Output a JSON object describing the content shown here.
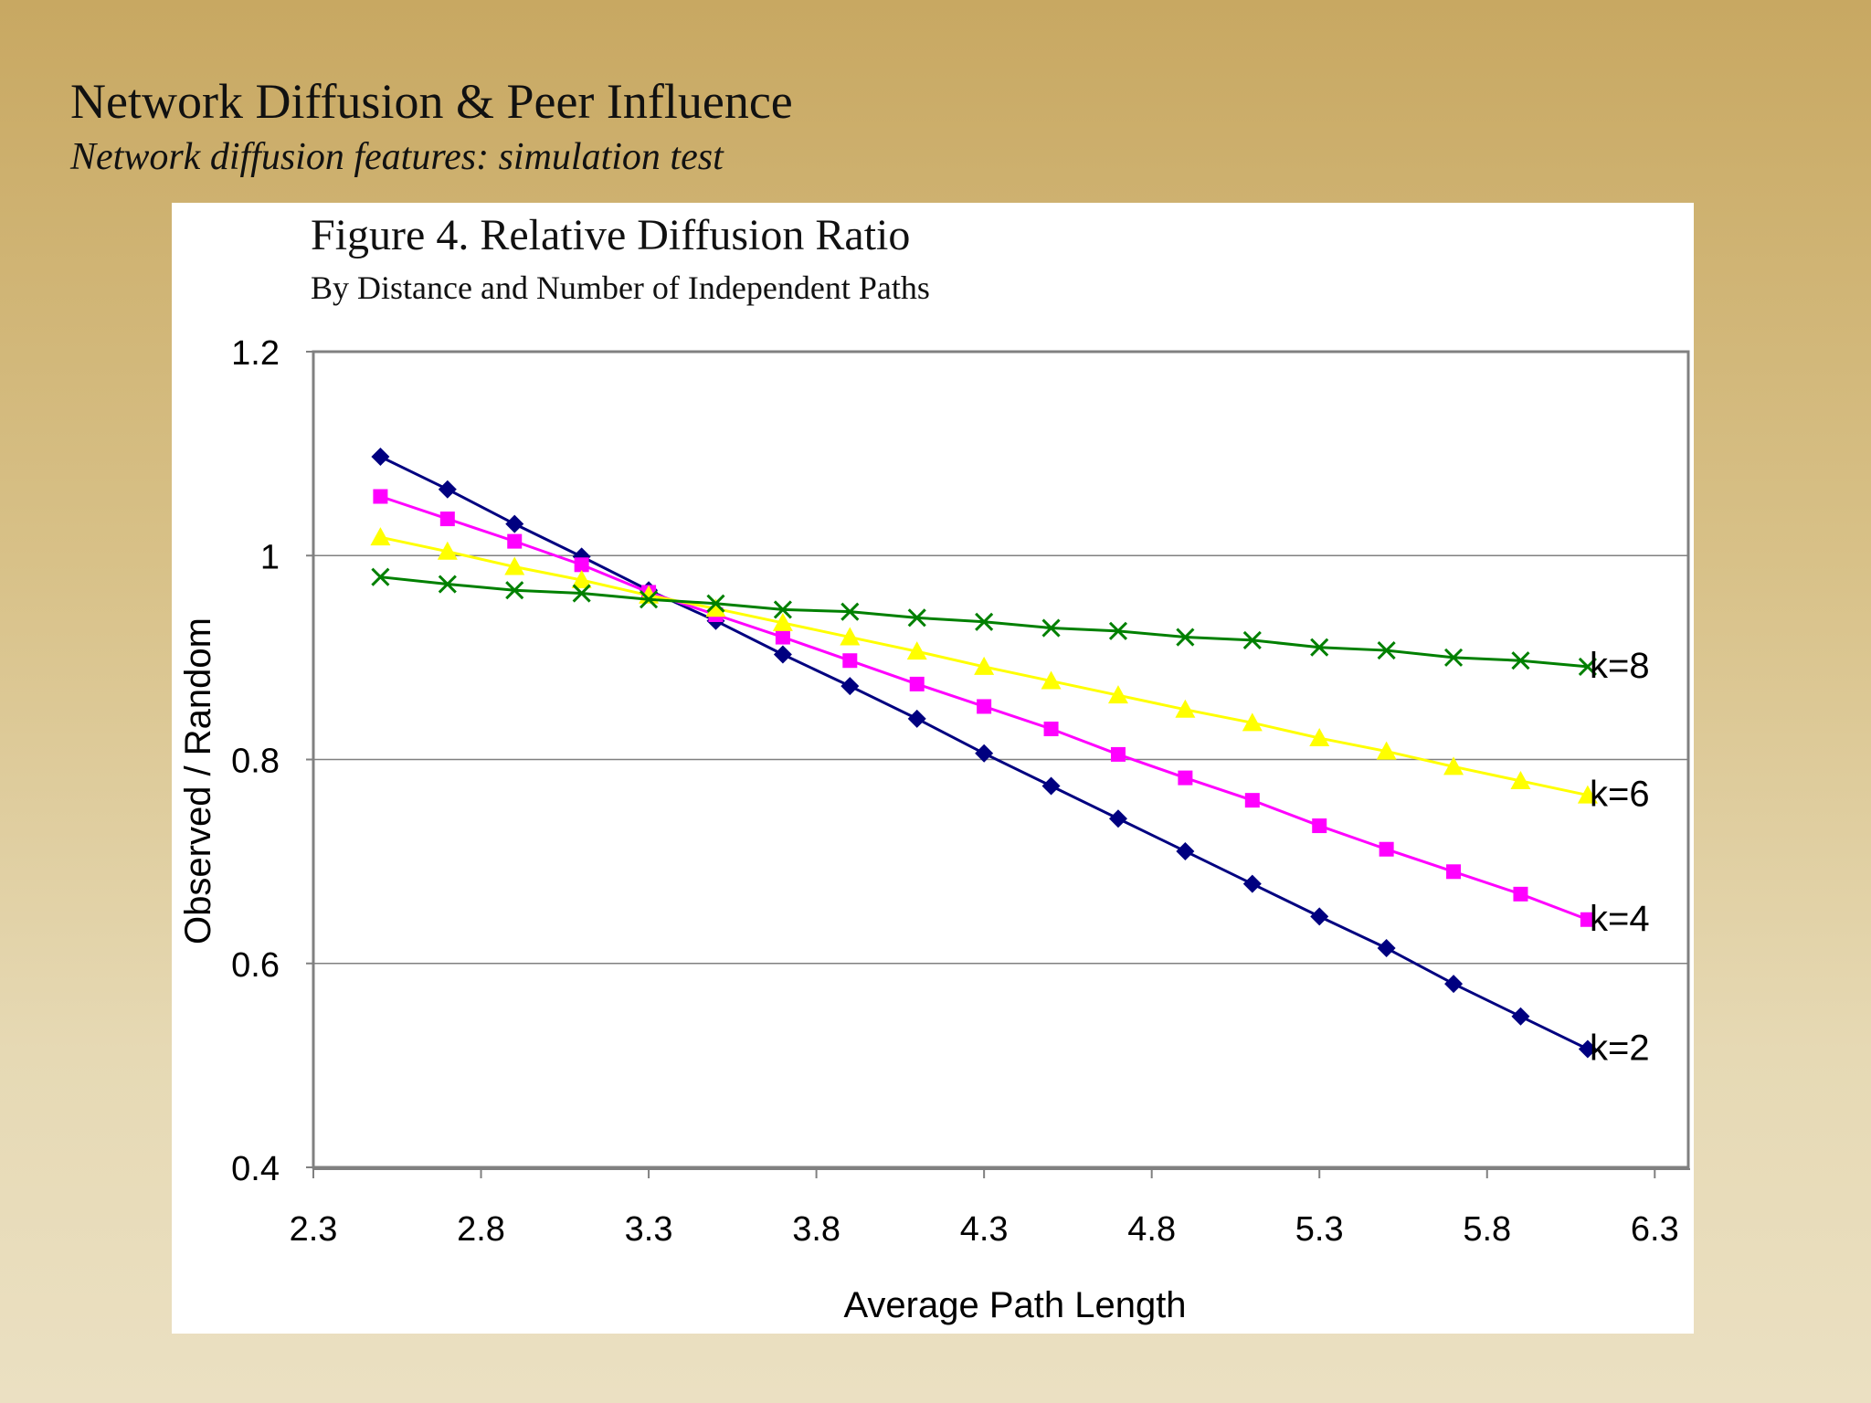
{
  "slide": {
    "title": "Network Diffusion & Peer Influence",
    "subtitle": "Network diffusion features: simulation test"
  },
  "chart_data": {
    "type": "line",
    "title": "Figure 4. Relative Diffusion Ratio",
    "subtitle": "By Distance and Number of Independent Paths",
    "xlabel": "Average Path Length",
    "ylabel": "Observed / Random",
    "xlim": [
      2.3,
      6.4
    ],
    "ylim": [
      0.4,
      1.2
    ],
    "xticks": [
      "2.3",
      "2.8",
      "3.3",
      "3.8",
      "4.3",
      "4.8",
      "5.3",
      "5.8",
      "6.3"
    ],
    "yticks": [
      "0.4",
      "0.6",
      "0.8",
      "1",
      "1.2"
    ],
    "grid": "horizontal",
    "x": [
      2.5,
      2.7,
      2.9,
      3.1,
      3.3,
      3.5,
      3.7,
      3.9,
      4.1,
      4.3,
      4.5,
      4.7,
      4.9,
      5.1,
      5.3,
      5.5,
      5.7,
      5.9,
      6.1
    ],
    "series": [
      {
        "name": "k=2",
        "color": "#000080",
        "marker": "diamond",
        "values": [
          1.097,
          1.065,
          1.031,
          0.999,
          0.966,
          0.936,
          0.903,
          0.872,
          0.84,
          0.806,
          0.774,
          0.742,
          0.71,
          0.678,
          0.646,
          0.615,
          0.58,
          0.548,
          0.516
        ]
      },
      {
        "name": "k=4",
        "color": "#ff00ff",
        "marker": "square",
        "values": [
          1.058,
          1.036,
          1.014,
          0.991,
          0.964,
          0.942,
          0.92,
          0.897,
          0.874,
          0.852,
          0.83,
          0.805,
          0.782,
          0.76,
          0.735,
          0.712,
          0.69,
          0.668,
          0.643
        ]
      },
      {
        "name": "k=6",
        "color": "#ffff00",
        "marker": "triangle",
        "values": [
          1.018,
          1.004,
          0.989,
          0.976,
          0.961,
          0.948,
          0.934,
          0.92,
          0.906,
          0.891,
          0.877,
          0.863,
          0.849,
          0.836,
          0.821,
          0.808,
          0.793,
          0.779,
          0.765
        ]
      },
      {
        "name": "k=8",
        "color": "#008000",
        "marker": "x",
        "values": [
          0.979,
          0.972,
          0.966,
          0.963,
          0.957,
          0.953,
          0.947,
          0.945,
          0.939,
          0.935,
          0.929,
          0.926,
          0.92,
          0.917,
          0.91,
          0.907,
          0.9,
          0.897,
          0.891
        ]
      }
    ]
  }
}
